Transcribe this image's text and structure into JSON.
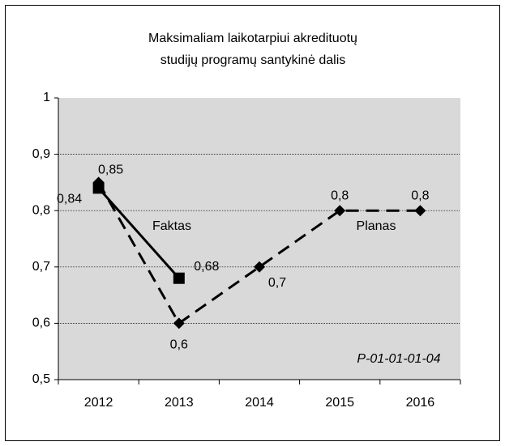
{
  "chart_data": {
    "type": "line",
    "title_lines": [
      "Maksimaliam laikotarpiui akredituotų",
      "studijų programų santykinė dalis"
    ],
    "categories": [
      "2012",
      "2013",
      "2014",
      "2015",
      "2016"
    ],
    "series": [
      {
        "name": "Faktas",
        "color": "#000000",
        "dashed": false,
        "marker": "square",
        "values": [
          0.84,
          0.68,
          null,
          null,
          null
        ],
        "value_labels": [
          "0,84",
          "0,68",
          null,
          null,
          null
        ]
      },
      {
        "name": "Planas",
        "color": "#000000",
        "dashed": true,
        "marker": "diamond",
        "values": [
          0.85,
          0.6,
          0.7,
          0.8,
          0.8
        ],
        "value_labels": [
          "0,85",
          "0,6",
          "0,7",
          "0,8",
          "0,8"
        ]
      }
    ],
    "ylim": [
      0.5,
      1
    ],
    "yticks": [
      {
        "value": 0.5,
        "label": "0,5"
      },
      {
        "value": 0.6,
        "label": "0,6"
      },
      {
        "value": 0.7,
        "label": "0,7"
      },
      {
        "value": 0.8,
        "label": "0,8"
      },
      {
        "value": 0.9,
        "label": "0,9"
      },
      1
    ],
    "grid": true,
    "annotation": "P-01-01-01-04"
  }
}
